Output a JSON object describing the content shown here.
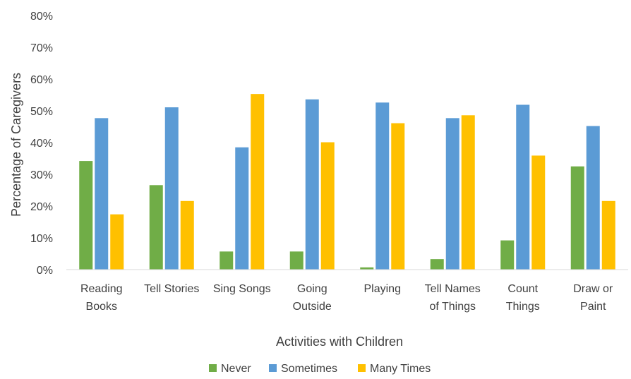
{
  "chart_data": {
    "type": "bar",
    "title": "",
    "xlabel": "Activities with Children",
    "ylabel": "Percentage of Caregivers",
    "ylim": [
      0,
      80
    ],
    "yticks": [
      "0%",
      "10%",
      "20%",
      "30%",
      "40%",
      "50%",
      "60%",
      "70%",
      "80%"
    ],
    "grid": false,
    "legend_position": "bottom",
    "categories": [
      [
        "Reading",
        "Books"
      ],
      [
        "Tell Stories"
      ],
      [
        "Sing Songs"
      ],
      [
        "Going",
        "Outside"
      ],
      [
        "Playing"
      ],
      [
        "Tell Names",
        "of Things"
      ],
      [
        "Count",
        "Things"
      ],
      [
        "Draw or",
        "Paint"
      ]
    ],
    "series": [
      {
        "name": "Never",
        "color": "#70AD47",
        "values": [
          34.2,
          26.6,
          5.7,
          5.7,
          0.7,
          3.3,
          9.2,
          32.5
        ]
      },
      {
        "name": "Sometimes",
        "color": "#5B9BD5",
        "values": [
          47.7,
          51.1,
          38.5,
          53.6,
          52.6,
          47.7,
          51.9,
          45.2
        ]
      },
      {
        "name": "Many Times",
        "color": "#FFC000",
        "values": [
          17.4,
          21.6,
          55.3,
          40.1,
          46.1,
          48.6,
          35.9,
          21.6
        ]
      }
    ]
  }
}
